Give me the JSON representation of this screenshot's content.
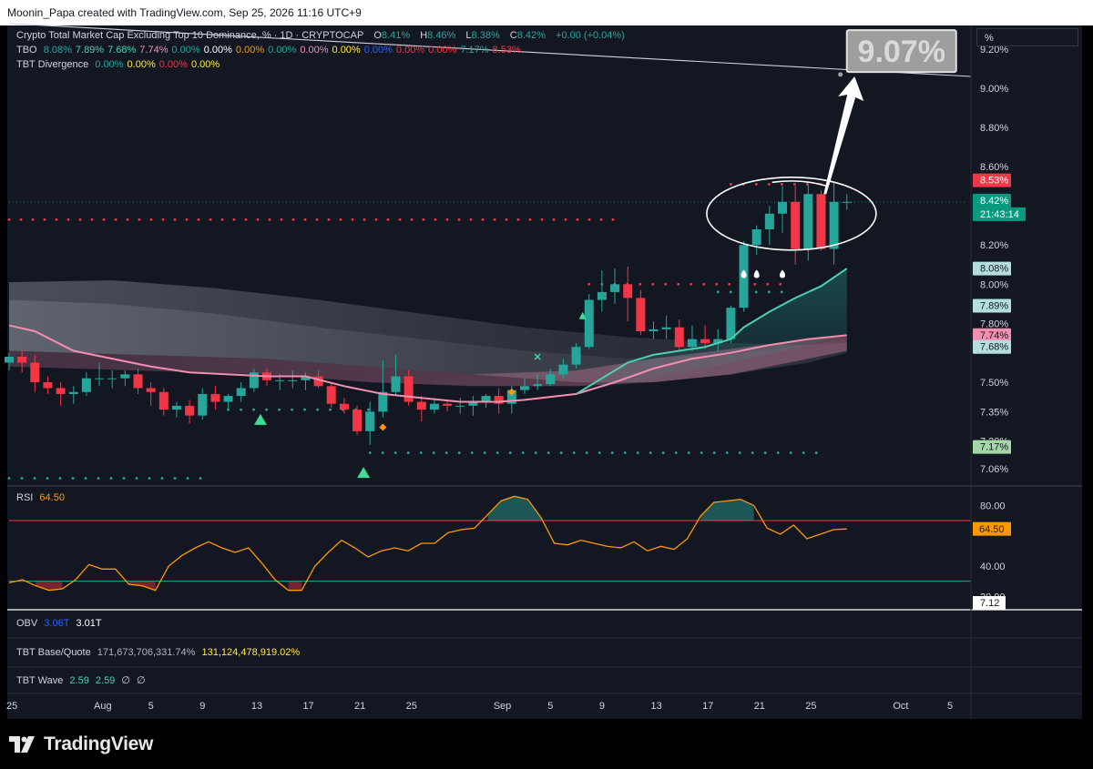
{
  "header": {
    "text": "Moonin_Papa created with TradingView.com, Sep 25, 2026 11:16 UTC+9"
  },
  "scale_mode": "%",
  "legend": {
    "symbol": {
      "name": "Crypto Total Market Cap Excluding Top 10 Dominance, % · 1D · CRYPTOCAP",
      "o_label": "O",
      "o": "8.41%",
      "h_label": "H",
      "h": "8.46%",
      "l_label": "L",
      "l": "8.38%",
      "c_label": "C",
      "c": "8.42%",
      "change": "+0.00 (+0.04%)"
    },
    "tbo": {
      "name": "TBO",
      "values": [
        "8.08%",
        "7.89%",
        "7.68%",
        "7.74%",
        "0.00%",
        "0.00%",
        "0.00%",
        "0.00%",
        "0.00%",
        "0.00%",
        "0.00%",
        "0.00%",
        "0.00%",
        "7.17%",
        "8.53%"
      ],
      "colors": [
        "#26a69a",
        "#4dd0b1",
        "#4dd0b1",
        "#f48fb1",
        "#26a69a",
        "#ffffff",
        "#ff9800",
        "#26a69a",
        "#f48fb1",
        "#ffeb3b",
        "#2962ff",
        "#f23645",
        "#f23645",
        "#26a69a",
        "#f23645"
      ]
    },
    "tbt_divergence": {
      "name": "TBT Divergence",
      "values": [
        "0.00%",
        "0.00%",
        "0.00%",
        "0.00%"
      ],
      "colors": [
        "#26a69a",
        "#ffeb3b",
        "#f23645",
        "#ffeb3b"
      ]
    }
  },
  "annotation": {
    "label": "9.07%"
  },
  "price_axis": {
    "ticks": [
      "9.20%",
      "9.00%",
      "8.80%",
      "8.60%",
      "8.20%",
      "8.00%",
      "7.80%",
      "7.50%",
      "7.35%",
      "7.20%",
      "7.06%"
    ],
    "badges": [
      {
        "label": "8.53%",
        "bg": "#f23645",
        "fg": "#ffffff"
      },
      {
        "label": "8.42%",
        "sub": "21:43:14",
        "bg": "#089981",
        "fg": "#ffffff"
      },
      {
        "label": "8.08%",
        "bg": "#b2dfdb",
        "fg": "#131722"
      },
      {
        "label": "7.89%",
        "bg": "#b2dfdb",
        "fg": "#131722"
      },
      {
        "label": "7.74%",
        "bg": "#f48fb1",
        "fg": "#131722"
      },
      {
        "label": "7.68%",
        "bg": "#b2dfdb",
        "fg": "#131722"
      },
      {
        "label": "7.17%",
        "bg": "#a5d6a7",
        "fg": "#131722"
      }
    ]
  },
  "rsi": {
    "name": "RSI",
    "value": "64.50",
    "ticks": [
      "80.00",
      "40.00",
      "20.00"
    ],
    "badge": "64.50",
    "badge2": "7.12",
    "upper_band": 70,
    "lower_band": 30
  },
  "obv": {
    "name": "OBV",
    "v1": "3.06T",
    "v2": "3.01T"
  },
  "tbt_base_quote": {
    "name": "TBT Base/Quote",
    "v1": "171,673,706,331.74%",
    "v2": "131,124,478,919.02%"
  },
  "tbt_wave": {
    "name": "TBT Wave",
    "v1": "2.59",
    "v2": "2.59",
    "v3": "∅",
    "v4": "∅"
  },
  "time_axis": {
    "ticks": [
      "25",
      "Aug",
      "5",
      "9",
      "13",
      "17",
      "21",
      "25",
      "Sep",
      "5",
      "9",
      "13",
      "17",
      "21",
      "25",
      "Oct",
      "5"
    ]
  },
  "brand": {
    "name": "TradingView"
  },
  "colors": {
    "up": "#26a69a",
    "down": "#f23645",
    "background": "#131722",
    "rsi_line": "#ff9800",
    "ma_pink": "#f48fb1",
    "ma_teal": "#4dd0b1"
  },
  "chart_data": {
    "type": "candlestick",
    "title": "Crypto Total Market Cap Excluding Top 10 Dominance, % · 1D · CRYPTOCAP",
    "y_unit": "%",
    "ylim": [
      6.98,
      9.32
    ],
    "x_start_date": "2026-07-25",
    "last": {
      "open": 8.41,
      "high": 8.46,
      "low": 8.38,
      "close": 8.42
    },
    "candles": [
      [
        7.6,
        7.65,
        7.56,
        7.63
      ],
      [
        7.63,
        7.66,
        7.55,
        7.6
      ],
      [
        7.6,
        7.64,
        7.45,
        7.5
      ],
      [
        7.5,
        7.53,
        7.44,
        7.47
      ],
      [
        7.47,
        7.5,
        7.38,
        7.44
      ],
      [
        7.44,
        7.48,
        7.39,
        7.45
      ],
      [
        7.45,
        7.55,
        7.43,
        7.52
      ],
      [
        7.52,
        7.6,
        7.48,
        7.52
      ],
      [
        7.52,
        7.56,
        7.47,
        7.52
      ],
      [
        7.52,
        7.56,
        7.48,
        7.54
      ],
      [
        7.54,
        7.57,
        7.44,
        7.47
      ],
      [
        7.47,
        7.5,
        7.38,
        7.45
      ],
      [
        7.45,
        7.47,
        7.33,
        7.36
      ],
      [
        7.36,
        7.4,
        7.32,
        7.38
      ],
      [
        7.38,
        7.41,
        7.29,
        7.33
      ],
      [
        7.33,
        7.47,
        7.31,
        7.44
      ],
      [
        7.44,
        7.48,
        7.36,
        7.4
      ],
      [
        7.4,
        7.44,
        7.36,
        7.43
      ],
      [
        7.43,
        7.5,
        7.4,
        7.47
      ],
      [
        7.47,
        7.57,
        7.45,
        7.55
      ],
      [
        7.55,
        7.57,
        7.48,
        7.51
      ],
      [
        7.51,
        7.54,
        7.46,
        7.51
      ],
      [
        7.51,
        7.56,
        7.47,
        7.51
      ],
      [
        7.51,
        7.55,
        7.46,
        7.53
      ],
      [
        7.53,
        7.56,
        7.47,
        7.48
      ],
      [
        7.48,
        7.5,
        7.37,
        7.39
      ],
      [
        7.39,
        7.42,
        7.34,
        7.36
      ],
      [
        7.36,
        7.38,
        7.23,
        7.25
      ],
      [
        7.25,
        7.4,
        7.18,
        7.35
      ],
      [
        7.35,
        7.61,
        7.32,
        7.45
      ],
      [
        7.45,
        7.64,
        7.43,
        7.53
      ],
      [
        7.53,
        7.56,
        7.38,
        7.4
      ],
      [
        7.4,
        7.43,
        7.3,
        7.36
      ],
      [
        7.36,
        7.42,
        7.34,
        7.39
      ],
      [
        7.39,
        7.41,
        7.35,
        7.38
      ],
      [
        7.38,
        7.42,
        7.34,
        7.38
      ],
      [
        7.38,
        7.43,
        7.33,
        7.4
      ],
      [
        7.4,
        7.44,
        7.37,
        7.43
      ],
      [
        7.43,
        7.47,
        7.34,
        7.39
      ],
      [
        7.39,
        7.48,
        7.34,
        7.46
      ],
      [
        7.46,
        7.52,
        7.44,
        7.48
      ],
      [
        7.48,
        7.54,
        7.46,
        7.49
      ],
      [
        7.49,
        7.57,
        7.48,
        7.54
      ],
      [
        7.54,
        7.62,
        7.52,
        7.59
      ],
      [
        7.59,
        7.7,
        7.57,
        7.68
      ],
      [
        7.68,
        7.95,
        7.67,
        7.92
      ],
      [
        7.92,
        8.07,
        7.86,
        7.96
      ],
      [
        7.96,
        8.08,
        7.9,
        8.0
      ],
      [
        8.0,
        8.09,
        7.81,
        7.93
      ],
      [
        7.93,
        7.97,
        7.74,
        7.76
      ],
      [
        7.76,
        7.81,
        7.72,
        7.77
      ],
      [
        7.77,
        7.84,
        7.72,
        7.78
      ],
      [
        7.78,
        7.82,
        7.66,
        7.68
      ],
      [
        7.68,
        7.79,
        7.66,
        7.72
      ],
      [
        7.72,
        7.79,
        7.67,
        7.7
      ],
      [
        7.7,
        7.77,
        7.66,
        7.72
      ],
      [
        7.72,
        7.89,
        7.7,
        7.88
      ],
      [
        7.88,
        8.22,
        7.86,
        8.2
      ],
      [
        8.2,
        8.3,
        8.15,
        8.28
      ],
      [
        8.28,
        8.4,
        8.2,
        8.36
      ],
      [
        8.36,
        8.5,
        8.26,
        8.42
      ],
      [
        8.42,
        8.5,
        8.1,
        8.18
      ],
      [
        8.18,
        8.51,
        8.12,
        8.46
      ],
      [
        8.46,
        8.48,
        8.17,
        8.18
      ],
      [
        8.18,
        8.52,
        8.1,
        8.42
      ],
      [
        8.42,
        8.46,
        8.38,
        8.42
      ]
    ],
    "ma_pink": [
      [
        0,
        7.79
      ],
      [
        2,
        7.76
      ],
      [
        5,
        7.66
      ],
      [
        8,
        7.62
      ],
      [
        11,
        7.58
      ],
      [
        14,
        7.55
      ],
      [
        17,
        7.54
      ],
      [
        20,
        7.53
      ],
      [
        23,
        7.53
      ],
      [
        26,
        7.48
      ],
      [
        29,
        7.44
      ],
      [
        32,
        7.42
      ],
      [
        35,
        7.4
      ],
      [
        38,
        7.4
      ],
      [
        40,
        7.41
      ],
      [
        44,
        7.44
      ],
      [
        47,
        7.5
      ],
      [
        50,
        7.57
      ],
      [
        53,
        7.62
      ],
      [
        56,
        7.65
      ],
      [
        59,
        7.69
      ],
      [
        62,
        7.72
      ],
      [
        65,
        7.74
      ]
    ],
    "ma_teal": [
      [
        44,
        7.44
      ],
      [
        46,
        7.52
      ],
      [
        48,
        7.6
      ],
      [
        50,
        7.64
      ],
      [
        52,
        7.66
      ],
      [
        54,
        7.68
      ],
      [
        56,
        7.72
      ],
      [
        57,
        7.78
      ],
      [
        59,
        7.86
      ],
      [
        61,
        7.93
      ],
      [
        63,
        7.99
      ],
      [
        65,
        8.08
      ]
    ],
    "resistance_trendline": {
      "from": [
        "2026-07-25",
        9.33
      ],
      "to": [
        "2026-10-07",
        9.06
      ]
    },
    "target_label": 9.07,
    "rsi_series": [
      [
        0,
        29
      ],
      [
        1,
        31
      ],
      [
        2,
        27
      ],
      [
        3,
        24
      ],
      [
        4,
        25
      ],
      [
        5,
        31
      ],
      [
        6,
        41
      ],
      [
        7,
        38
      ],
      [
        8,
        38
      ],
      [
        9,
        28
      ],
      [
        10,
        27
      ],
      [
        11,
        24
      ],
      [
        12,
        40
      ],
      [
        13,
        47
      ],
      [
        14,
        52
      ],
      [
        15,
        56
      ],
      [
        16,
        52
      ],
      [
        17,
        49
      ],
      [
        18,
        52
      ],
      [
        19,
        42
      ],
      [
        20,
        31
      ],
      [
        21,
        24
      ],
      [
        22,
        24
      ],
      [
        23,
        40
      ],
      [
        24,
        49
      ],
      [
        25,
        57
      ],
      [
        26,
        52
      ],
      [
        27,
        46
      ],
      [
        28,
        50
      ],
      [
        29,
        52
      ],
      [
        30,
        50
      ],
      [
        31,
        55
      ],
      [
        32,
        55
      ],
      [
        33,
        62
      ],
      [
        34,
        64
      ],
      [
        35,
        65
      ],
      [
        36,
        74
      ],
      [
        37,
        83
      ],
      [
        38,
        86
      ],
      [
        39,
        84
      ],
      [
        40,
        72
      ],
      [
        41,
        55
      ],
      [
        42,
        54
      ],
      [
        43,
        57
      ],
      [
        44,
        55
      ],
      [
        45,
        53
      ],
      [
        46,
        52
      ],
      [
        47,
        56
      ],
      [
        48,
        50
      ],
      [
        49,
        53
      ],
      [
        50,
        51
      ],
      [
        51,
        58
      ],
      [
        52,
        73
      ],
      [
        53,
        82
      ],
      [
        54,
        83
      ],
      [
        55,
        84
      ],
      [
        56,
        80
      ],
      [
        57,
        65
      ],
      [
        58,
        61
      ],
      [
        59,
        67
      ],
      [
        60,
        58
      ],
      [
        61,
        61
      ],
      [
        62,
        64
      ],
      [
        63,
        64.5
      ]
    ]
  }
}
